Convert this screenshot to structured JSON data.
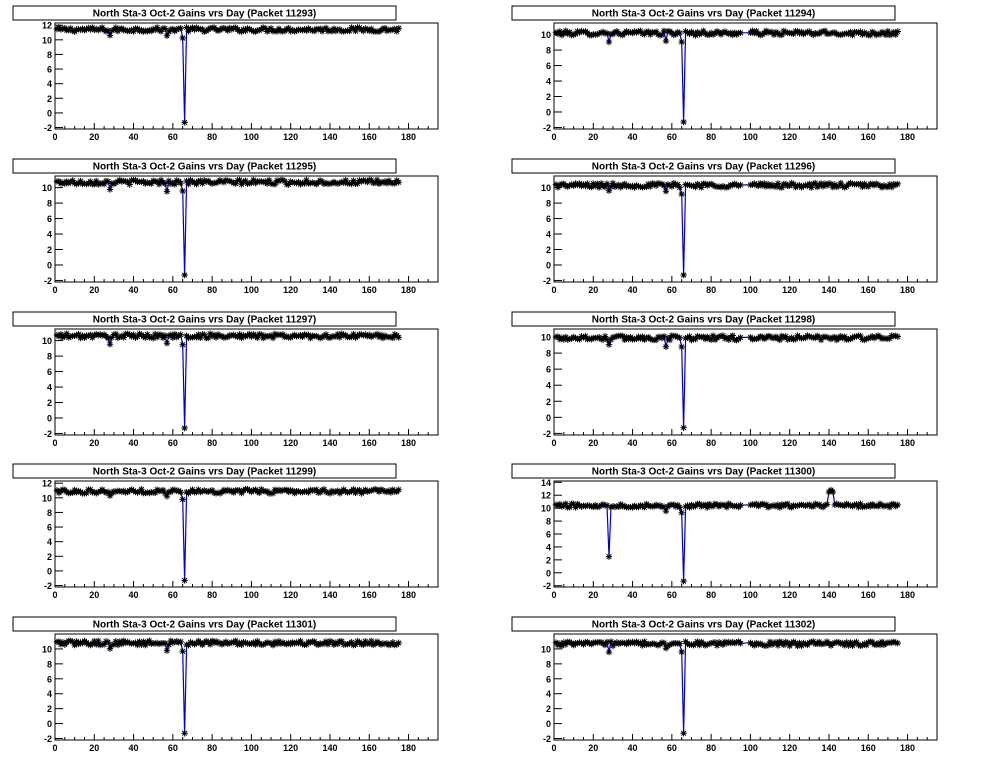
{
  "colors": {
    "background": "#ffffff",
    "frame": "#000000",
    "marker": "#000000",
    "line": "#0000cc"
  },
  "chart_data": [
    {
      "type": "line",
      "title": "North Sta-3 Oct-2 Gains vrs Day (Packet 11293)",
      "xlim": [
        0,
        195
      ],
      "ylim": [
        -2.2,
        12.3
      ],
      "xticks": [
        "0",
        "20",
        "40",
        "60",
        "80",
        "100",
        "120",
        "140",
        "160",
        "180"
      ],
      "yticks": [
        "-2",
        "0",
        "2",
        "4",
        "6",
        "8",
        "10",
        "12"
      ],
      "series": [
        {
          "base": 11.4,
          "dips": [
            {
              "x": 66,
              "y": -1.3
            }
          ]
        }
      ]
    },
    {
      "type": "line",
      "title": "North Sta-3 Oct-2 Gains vrs Day (Packet 11294)",
      "xlim": [
        0,
        195
      ],
      "ylim": [
        -2.2,
        11.5
      ],
      "xticks": [
        "0",
        "20",
        "40",
        "60",
        "80",
        "100",
        "120",
        "140",
        "160",
        "180"
      ],
      "yticks": [
        "-2",
        "0",
        "2",
        "4",
        "6",
        "8",
        "10"
      ],
      "series": [
        {
          "base": 10.2,
          "dips": [
            {
              "x": 66,
              "y": -1.3
            }
          ]
        }
      ]
    },
    {
      "type": "line",
      "title": "North Sta-3 Oct-2 Gains vrs Day (Packet 11295)",
      "xlim": [
        0,
        195
      ],
      "ylim": [
        -2.2,
        11.5
      ],
      "xticks": [
        "0",
        "20",
        "40",
        "60",
        "80",
        "100",
        "120",
        "140",
        "160",
        "180"
      ],
      "yticks": [
        "-2",
        "0",
        "2",
        "4",
        "6",
        "8",
        "10"
      ],
      "series": [
        {
          "base": 10.7,
          "dips": [
            {
              "x": 66,
              "y": -1.3
            }
          ]
        }
      ]
    },
    {
      "type": "line",
      "title": "North Sta-3 Oct-2 Gains vrs Day (Packet 11296)",
      "xlim": [
        0,
        195
      ],
      "ylim": [
        -2.2,
        11.5
      ],
      "xticks": [
        "0",
        "20",
        "40",
        "60",
        "80",
        "100",
        "120",
        "140",
        "160",
        "180"
      ],
      "yticks": [
        "-2",
        "0",
        "2",
        "4",
        "6",
        "8",
        "10"
      ],
      "series": [
        {
          "base": 10.3,
          "dips": [
            {
              "x": 66,
              "y": -1.3
            }
          ]
        }
      ]
    },
    {
      "type": "line",
      "title": "North Sta-3 Oct-2 Gains vrs Day (Packet 11297)",
      "xlim": [
        0,
        195
      ],
      "ylim": [
        -2.2,
        11.5
      ],
      "xticks": [
        "0",
        "20",
        "40",
        "60",
        "80",
        "100",
        "120",
        "140",
        "160",
        "180"
      ],
      "yticks": [
        "-2",
        "0",
        "2",
        "4",
        "6",
        "8",
        "10"
      ],
      "series": [
        {
          "base": 10.6,
          "dips": [
            {
              "x": 66,
              "y": -1.3
            }
          ]
        }
      ]
    },
    {
      "type": "line",
      "title": "North Sta-3 Oct-2 Gains vrs Day (Packet 11298)",
      "xlim": [
        0,
        195
      ],
      "ylim": [
        -2.2,
        11.0
      ],
      "xticks": [
        "0",
        "20",
        "40",
        "60",
        "80",
        "100",
        "120",
        "140",
        "160",
        "180"
      ],
      "yticks": [
        "-2",
        "0",
        "2",
        "4",
        "6",
        "8",
        "10"
      ],
      "series": [
        {
          "base": 9.9,
          "dips": [
            {
              "x": 66,
              "y": -1.3
            }
          ]
        }
      ]
    },
    {
      "type": "line",
      "title": "North Sta-3 Oct-2 Gains vrs Day (Packet 11299)",
      "xlim": [
        0,
        195
      ],
      "ylim": [
        -2.2,
        12.3
      ],
      "xticks": [
        "0",
        "20",
        "40",
        "60",
        "80",
        "100",
        "120",
        "140",
        "160",
        "180"
      ],
      "yticks": [
        "-2",
        "0",
        "2",
        "4",
        "6",
        "8",
        "10",
        "12"
      ],
      "series": [
        {
          "base": 10.9,
          "dips": [
            {
              "x": 66,
              "y": -1.3
            }
          ]
        }
      ]
    },
    {
      "type": "line",
      "title": "North Sta-3 Oct-2 Gains vrs Day (Packet 11300)",
      "xlim": [
        0,
        195
      ],
      "ylim": [
        -2.2,
        14.2
      ],
      "xticks": [
        "0",
        "20",
        "40",
        "60",
        "80",
        "100",
        "120",
        "140",
        "160",
        "180"
      ],
      "yticks": [
        "-2",
        "0",
        "2",
        "4",
        "6",
        "8",
        "10",
        "12",
        "14"
      ],
      "series": [
        {
          "base": 10.4,
          "dips": [
            {
              "x": 28,
              "y": 2.5
            },
            {
              "x": 66,
              "y": -1.3
            }
          ],
          "peaks": [
            {
              "x": 141,
              "y": 12.8
            }
          ]
        }
      ]
    },
    {
      "type": "line",
      "title": "North Sta-3 Oct-2 Gains vrs Day (Packet 11301)",
      "xlim": [
        0,
        195
      ],
      "ylim": [
        -2.2,
        12.0
      ],
      "xticks": [
        "0",
        "20",
        "40",
        "60",
        "80",
        "100",
        "120",
        "140",
        "160",
        "180"
      ],
      "yticks": [
        "-2",
        "0",
        "2",
        "4",
        "6",
        "8",
        "10"
      ],
      "series": [
        {
          "base": 10.8,
          "dips": [
            {
              "x": 66,
              "y": -1.3
            }
          ]
        }
      ]
    },
    {
      "type": "line",
      "title": "North Sta-3 Oct-2 Gains vrs Day (Packet 11302)",
      "xlim": [
        0,
        195
      ],
      "ylim": [
        -2.2,
        12.0
      ],
      "xticks": [
        "0",
        "20",
        "40",
        "60",
        "80",
        "100",
        "120",
        "140",
        "160",
        "180"
      ],
      "yticks": [
        "-2",
        "0",
        "2",
        "4",
        "6",
        "8",
        "10"
      ],
      "series": [
        {
          "base": 10.7,
          "dips": [
            {
              "x": 66,
              "y": -1.3
            }
          ]
        }
      ]
    }
  ]
}
